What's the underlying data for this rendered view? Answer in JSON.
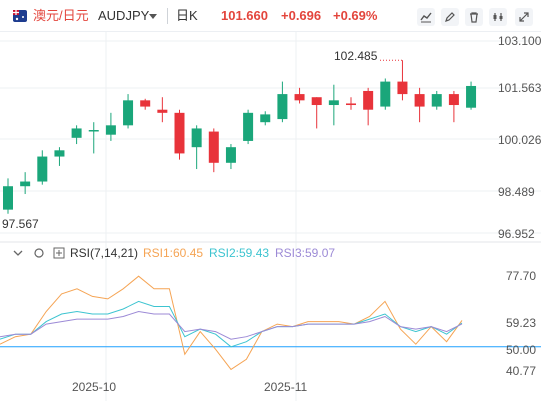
{
  "header": {
    "pair_cn": "澳元/日元",
    "pair_code": "AUDJPY",
    "period": "日K",
    "price": "101.660",
    "change": "+0.696",
    "change_pct": "+0.69%"
  },
  "colors": {
    "up": "#e8333a",
    "down": "#1aa67a",
    "rsi1": "#f5a454",
    "rsi2": "#3dc4d0",
    "rsi3": "#9c8ad6",
    "level_line": "#1ea0ff"
  },
  "icons": [
    "australia-flag-icon",
    "dropdown-caret-icon",
    "draw-line-icon",
    "edit-icon",
    "delete-icon",
    "toggle-icon",
    "fullscreen-icon",
    "close-icon",
    "collapse-icon",
    "settings-icon",
    "indicator-icon"
  ],
  "chart_data": [
    {
      "type": "candlestick",
      "y_axis_ticks": [
        "103.100",
        "101.563",
        "100.026",
        "98.489",
        "96.952"
      ],
      "ylim": [
        96.952,
        103.1
      ],
      "annotations": {
        "high_label": "102.485",
        "low_label": "97.567"
      },
      "candles": [
        {
          "o": 97.7,
          "h": 98.7,
          "l": 97.567,
          "c": 98.45
        },
        {
          "o": 98.45,
          "h": 98.9,
          "l": 98.2,
          "c": 98.6
        },
        {
          "o": 98.6,
          "h": 99.6,
          "l": 98.5,
          "c": 99.4
        },
        {
          "o": 99.4,
          "h": 99.7,
          "l": 99.1,
          "c": 99.6
        },
        {
          "o": 100.0,
          "h": 100.4,
          "l": 99.8,
          "c": 100.3
        },
        {
          "o": 100.25,
          "h": 100.5,
          "l": 99.5,
          "c": 100.25
        },
        {
          "o": 100.1,
          "h": 100.8,
          "l": 99.9,
          "c": 100.4
        },
        {
          "o": 100.4,
          "h": 101.4,
          "l": 100.3,
          "c": 101.2
        },
        {
          "o": 101.2,
          "h": 101.25,
          "l": 100.9,
          "c": 101.0
        },
        {
          "o": 100.9,
          "h": 101.3,
          "l": 100.5,
          "c": 100.8
        },
        {
          "o": 100.8,
          "h": 100.9,
          "l": 99.3,
          "c": 99.5
        },
        {
          "o": 99.7,
          "h": 100.4,
          "l": 99.0,
          "c": 100.3
        },
        {
          "o": 100.2,
          "h": 100.3,
          "l": 98.9,
          "c": 99.2
        },
        {
          "o": 99.2,
          "h": 99.8,
          "l": 99.0,
          "c": 99.7
        },
        {
          "o": 99.9,
          "h": 100.9,
          "l": 99.8,
          "c": 100.8
        },
        {
          "o": 100.5,
          "h": 100.85,
          "l": 100.4,
          "c": 100.75
        },
        {
          "o": 100.6,
          "h": 101.8,
          "l": 100.5,
          "c": 101.4
        },
        {
          "o": 101.4,
          "h": 101.6,
          "l": 101.1,
          "c": 101.2
        },
        {
          "o": 101.3,
          "h": 101.3,
          "l": 100.3,
          "c": 101.05
        },
        {
          "o": 101.05,
          "h": 101.7,
          "l": 100.4,
          "c": 101.2
        },
        {
          "o": 101.1,
          "h": 101.3,
          "l": 100.9,
          "c": 101.05
        },
        {
          "o": 101.5,
          "h": 101.6,
          "l": 100.4,
          "c": 100.9
        },
        {
          "o": 101.0,
          "h": 101.9,
          "l": 100.9,
          "c": 101.8
        },
        {
          "o": 101.8,
          "h": 102.485,
          "l": 101.2,
          "c": 101.4
        },
        {
          "o": 101.4,
          "h": 101.6,
          "l": 100.5,
          "c": 101.0
        },
        {
          "o": 101.0,
          "h": 101.5,
          "l": 100.9,
          "c": 101.4
        },
        {
          "o": 101.4,
          "h": 101.5,
          "l": 100.5,
          "c": 101.05
        },
        {
          "o": 100.964,
          "h": 101.8,
          "l": 100.9,
          "c": 101.66
        }
      ]
    },
    {
      "type": "line",
      "title": "RSI(7,14,21)",
      "y_axis_ticks": [
        "77.70",
        "59.23",
        "50.00",
        "40.77"
      ],
      "ylim": [
        40.77,
        77.7
      ],
      "level_line": 50.0,
      "x_ticks": [
        "2025-10",
        "2025-11"
      ],
      "series": [
        {
          "name": "RSI1:60.45",
          "values": [
            51,
            54,
            55,
            64,
            71,
            73,
            70,
            69,
            73,
            78,
            73,
            73,
            47,
            56,
            49,
            41,
            45,
            56,
            59,
            58,
            60,
            60,
            60,
            59,
            62,
            68,
            57,
            51,
            58,
            52,
            60.45
          ]
        },
        {
          "name": "RSI2:59.43",
          "values": [
            53,
            55,
            55,
            60,
            63,
            64,
            63,
            63,
            65,
            68,
            66,
            66,
            54,
            57,
            55,
            50,
            52,
            56,
            58,
            58,
            59,
            59,
            59,
            59,
            61,
            63,
            58,
            56,
            58,
            55,
            59.43
          ]
        },
        {
          "name": "RSI3:59.07",
          "values": [
            54,
            55,
            55,
            59,
            60,
            61,
            61,
            61,
            62,
            64,
            63,
            63,
            56,
            57,
            56,
            53,
            54,
            56,
            58,
            58,
            59,
            59,
            59,
            59,
            60,
            62,
            58,
            57,
            58,
            56,
            59.07
          ]
        }
      ]
    }
  ]
}
